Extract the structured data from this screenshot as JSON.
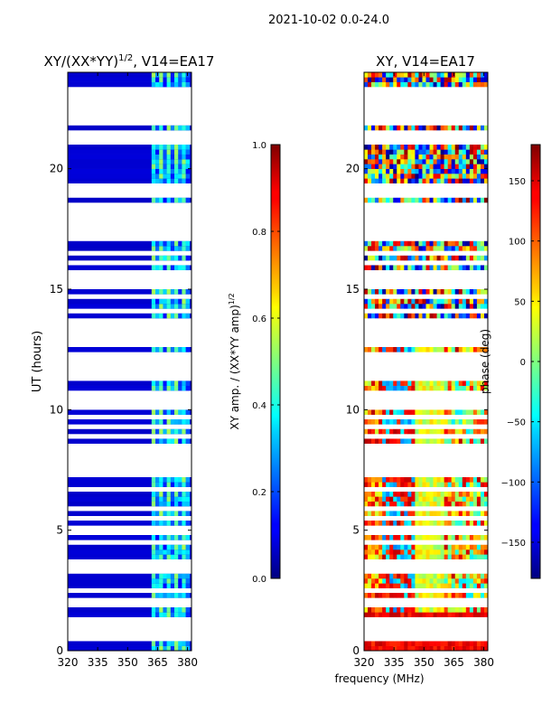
{
  "figure": {
    "suptitle": "2021-10-02 0.0-24.0",
    "shared_xlabel": "frequency (MHz)"
  },
  "chart_data": [
    {
      "type": "heatmap",
      "title": "XY/(XX*YY)^1/2, V14=EA17",
      "title_main": "XY/(XX*YY)",
      "title_sup": "1/2",
      "title_tail": ", V14=EA17",
      "xlabel": "",
      "ylabel": "UT (hours)",
      "xlim": [
        320,
        382
      ],
      "ylim": [
        0,
        24
      ],
      "xticks": [
        320,
        335,
        350,
        365,
        380
      ],
      "yticks": [
        0,
        5,
        10,
        15,
        20
      ],
      "colormap": "jet",
      "colorbar": {
        "label": "XY amp. / (XX*YY amp)^1/2",
        "label_main": "XY amp. / (XX*YY amp)",
        "label_sup": "1/2",
        "range": [
          0.0,
          1.0
        ],
        "ticks": [
          "0.0",
          "0.2",
          "0.4",
          "0.6",
          "0.8",
          "1.0"
        ],
        "tick_values": [
          0.0,
          0.2,
          0.4,
          0.6,
          0.8,
          1.0
        ]
      },
      "bands_description": "low amplitude (~0.05) everywhere except 362-381 MHz where values alternate ~0.3-0.6",
      "active_band": [
        362,
        381
      ]
    },
    {
      "type": "heatmap",
      "title": "XY, V14=EA17",
      "xlabel": "frequency (MHz)",
      "ylabel": "",
      "xlim": [
        320,
        382
      ],
      "ylim": [
        0,
        24
      ],
      "xticks": [
        320,
        335,
        350,
        365,
        380
      ],
      "yticks": [
        0,
        5,
        10,
        15,
        20
      ],
      "colormap": "jet",
      "colorbar": {
        "label": "phase (deg)",
        "range": [
          -180,
          180
        ],
        "ticks": [
          "−150",
          "−100",
          "−50",
          "0",
          "50",
          "100",
          "150"
        ],
        "tick_values": [
          -150,
          -100,
          -50,
          0,
          50,
          100,
          150
        ]
      }
    }
  ],
  "flagged_hours": [
    0.6,
    1.0,
    1.3,
    2.0,
    2.5,
    3.3,
    3.6,
    4.5,
    5.0,
    5.5,
    5.85,
    6.7,
    7.3,
    7.6,
    8.0,
    8.4,
    8.9,
    9.3,
    9.7,
    10.2,
    10.6,
    11.3,
    11.6,
    12.0,
    12.3,
    12.7,
    13.0,
    13.4,
    13.6,
    14.1,
    14.7,
    15.2,
    15.6,
    16.1,
    16.5,
    17.1,
    17.4,
    17.8,
    18.1,
    18.4,
    19.0,
    19.2,
    21.2,
    21.5,
    21.9,
    22.2,
    22.4,
    22.6,
    23.0,
    23.2
  ]
}
